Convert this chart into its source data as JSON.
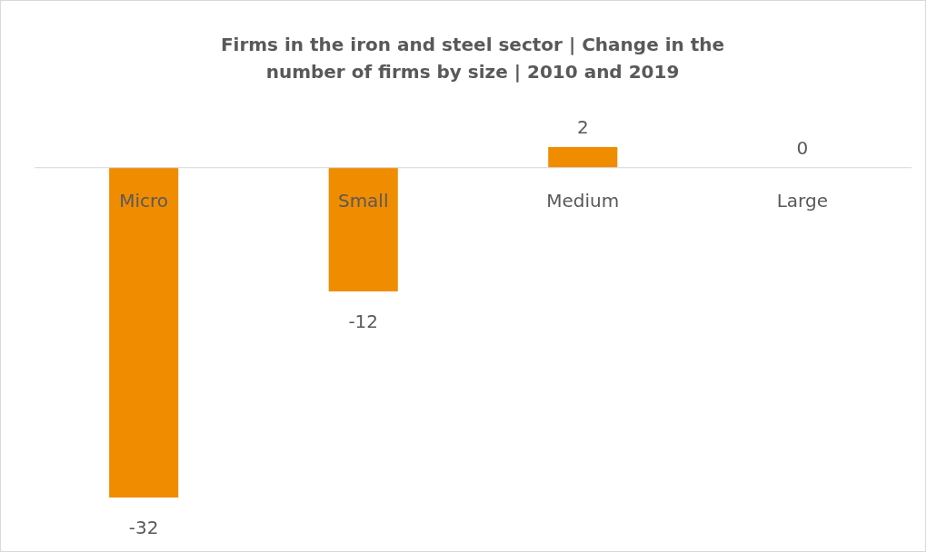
{
  "chart_data": {
    "type": "bar",
    "title": "Firms in the iron and steel sector | Change in the number of firms by size | 2010 and 2019",
    "categories": [
      "Micro",
      "Small",
      "Medium",
      "Large"
    ],
    "values": [
      -32,
      -12,
      2,
      0
    ],
    "color": "#f08c00",
    "tick_labels": "x",
    "data_labels": true
  }
}
